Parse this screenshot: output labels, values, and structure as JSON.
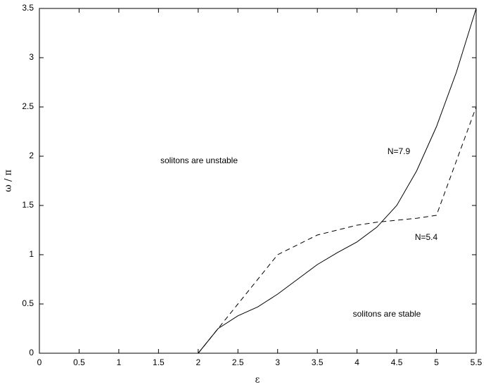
{
  "chart_data": {
    "type": "line",
    "x_label": "ε",
    "y_label": "ω / π",
    "annotations": [
      "solitons are unstable",
      "solitons are stable"
    ],
    "x": [
      2,
      2.25,
      2.5,
      2.75,
      3,
      3.25,
      3.5,
      3.75,
      4,
      4.25,
      4.5,
      4.75,
      5,
      5.25,
      5.5
    ],
    "series": [
      {
        "name": "N=7.9",
        "color": "#000000",
        "dash": "solid",
        "values": [
          0,
          0.25,
          0.38,
          0.47,
          0.6,
          0.75,
          0.9,
          1.02,
          1.13,
          1.28,
          1.5,
          1.85,
          2.3,
          2.85,
          3.5
        ]
      },
      {
        "name": "N=5.4",
        "color": "#000000",
        "dash": "dashed",
        "values": [
          0,
          0.25,
          0.5,
          0.75,
          1.0,
          1.1,
          1.2,
          1.25,
          1.3,
          1.33,
          1.35,
          1.37,
          1.4,
          1.95,
          2.5
        ]
      }
    ],
    "xlim": [
      0,
      5.5
    ],
    "ylim": [
      0,
      3.5
    ],
    "xticks": [
      0,
      0.5,
      1,
      1.5,
      2,
      2.5,
      3,
      3.5,
      4,
      4.5,
      5,
      5.5
    ],
    "yticks": [
      0,
      0.5,
      1,
      1.5,
      2,
      2.5,
      3,
      3.5
    ],
    "grid": false
  }
}
